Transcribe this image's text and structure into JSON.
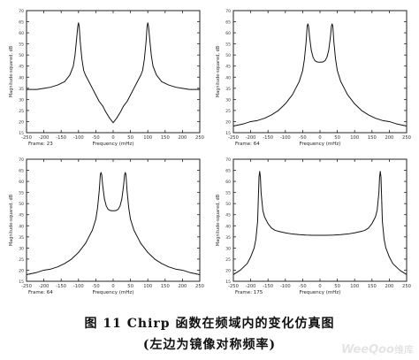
{
  "caption": {
    "line1": "图 11  Chirp 函数在频域内的变化仿真图",
    "line2": "(左边为镜像对称频率)"
  },
  "watermark": {
    "brand": "WeeQoo",
    "suffix": "维库"
  },
  "colors": {
    "curve": "#111111",
    "axis": "#222222",
    "bg": "#ffffff"
  },
  "chart_data": [
    {
      "type": "line",
      "frame": "Frame: 23",
      "xlabel": "Frequency (mHz)",
      "ylabel": "Magnitude-squared, dB",
      "xlim": [
        -250,
        250
      ],
      "ylim": [
        15,
        70
      ],
      "xticks": [
        -250,
        -200,
        -150,
        -100,
        -50,
        0,
        50,
        100,
        150,
        200,
        250
      ],
      "yticks": [
        15,
        20,
        25,
        30,
        35,
        40,
        45,
        50,
        55,
        60,
        65,
        70
      ],
      "series": [
        {
          "x": [
            -250,
            -220,
            -200,
            -180,
            -160,
            -140,
            -125,
            -115,
            -110,
            -105,
            -102,
            -100,
            -98,
            -95,
            -90,
            -85,
            -80,
            -70,
            -60,
            -50,
            -40,
            -30,
            -20,
            -10,
            0,
            10,
            20,
            30,
            40,
            50,
            60,
            70,
            80,
            85,
            90,
            95,
            98,
            100,
            102,
            105,
            110,
            115,
            125,
            140,
            160,
            180,
            200,
            220,
            250
          ],
          "y": [
            34.5,
            34.5,
            35,
            35.5,
            36.5,
            38,
            41,
            45,
            50,
            58,
            63,
            64.5,
            63,
            56,
            48,
            43,
            41,
            38,
            35,
            32,
            29,
            27,
            24,
            21.5,
            19.5,
            21.5,
            24,
            27,
            29,
            32,
            35,
            38,
            41,
            43,
            48,
            56,
            63,
            64.5,
            63,
            58,
            50,
            45,
            41,
            38,
            36.5,
            35.5,
            35,
            34.5,
            34.5
          ]
        }
      ]
    },
    {
      "type": "line",
      "frame": "Frame: 64",
      "xlabel": "Frequency (mHz)",
      "ylabel": "Magnitude-squared, dB",
      "xlim": [
        -250,
        250
      ],
      "ylim": [
        15,
        70
      ],
      "xticks": [
        -250,
        -200,
        -150,
        -100,
        -50,
        0,
        50,
        100,
        150,
        200,
        250
      ],
      "yticks": [
        15,
        20,
        25,
        30,
        35,
        40,
        45,
        50,
        55,
        60,
        65,
        70
      ],
      "series": [
        {
          "x": [
            -250,
            -220,
            -200,
            -180,
            -160,
            -140,
            -120,
            -100,
            -90,
            -80,
            -70,
            -60,
            -50,
            -45,
            -40,
            -37,
            -35,
            -33,
            -30,
            -25,
            -20,
            -15,
            -10,
            -5,
            0,
            5,
            10,
            15,
            20,
            25,
            30,
            33,
            35,
            37,
            40,
            45,
            50,
            60,
            70,
            80,
            90,
            100,
            120,
            140,
            160,
            180,
            200,
            220,
            250
          ],
          "y": [
            18,
            19,
            20,
            20.5,
            21.5,
            23,
            25,
            28,
            30,
            32,
            35,
            38,
            43,
            48,
            56,
            63,
            64,
            63,
            58,
            52,
            49,
            47.5,
            47,
            46.8,
            46.8,
            46.8,
            47,
            47.5,
            49,
            52,
            58,
            63,
            64,
            63,
            56,
            48,
            43,
            38,
            35,
            32,
            30,
            28,
            25,
            23,
            21.5,
            20.5,
            20,
            19,
            18
          ]
        }
      ]
    },
    {
      "type": "line",
      "frame": "Frame: 64",
      "xlabel": "Frequency (mHz)",
      "ylabel": "Magnitude-squared, dB",
      "xlim": [
        -250,
        250
      ],
      "ylim": [
        15,
        70
      ],
      "xticks": [
        -250,
        -200,
        -150,
        -100,
        -50,
        0,
        50,
        100,
        150,
        200,
        250
      ],
      "yticks": [
        15,
        20,
        25,
        30,
        35,
        40,
        45,
        50,
        55,
        60,
        65,
        70
      ],
      "series": [
        {
          "x": [
            -250,
            -220,
            -200,
            -180,
            -160,
            -140,
            -120,
            -100,
            -90,
            -80,
            -70,
            -60,
            -50,
            -45,
            -40,
            -37,
            -35,
            -33,
            -30,
            -25,
            -20,
            -15,
            -10,
            -5,
            0,
            5,
            10,
            15,
            20,
            25,
            30,
            33,
            35,
            37,
            40,
            45,
            50,
            60,
            70,
            80,
            90,
            100,
            120,
            140,
            160,
            180,
            200,
            220,
            250
          ],
          "y": [
            18,
            19,
            20,
            20.5,
            21.5,
            23,
            25,
            28,
            30,
            32,
            35,
            38,
            43,
            48,
            56,
            63,
            64,
            63,
            58,
            52,
            49,
            47.5,
            47,
            46.8,
            46.8,
            46.8,
            47,
            47.5,
            49,
            52,
            58,
            63,
            64,
            63,
            56,
            48,
            43,
            38,
            35,
            32,
            30,
            28,
            25,
            23,
            21.5,
            20.5,
            20,
            19,
            18
          ]
        }
      ]
    },
    {
      "type": "line",
      "frame": "Frame: 175",
      "xlabel": "Frequency (mHz)",
      "ylabel": "Magnitude-squared, dB",
      "xlim": [
        -250,
        250
      ],
      "ylim": [
        15,
        70
      ],
      "xticks": [
        -250,
        -200,
        -150,
        -100,
        -50,
        0,
        50,
        100,
        150,
        200,
        250
      ],
      "yticks": [
        15,
        20,
        25,
        30,
        35,
        40,
        45,
        50,
        55,
        60,
        65,
        70
      ],
      "series": [
        {
          "x": [
            -250,
            -240,
            -230,
            -220,
            -210,
            -200,
            -190,
            -185,
            -180,
            -178,
            -176,
            -174,
            -172,
            -170,
            -165,
            -160,
            -150,
            -140,
            -130,
            -120,
            -100,
            -80,
            -60,
            -40,
            -20,
            0,
            20,
            40,
            60,
            80,
            100,
            120,
            130,
            140,
            150,
            160,
            165,
            170,
            172,
            174,
            176,
            178,
            180,
            185,
            190,
            200,
            210,
            220,
            230,
            240,
            250
          ],
          "y": [
            18,
            19,
            20,
            21.5,
            23,
            26,
            30,
            34,
            42,
            52,
            62,
            64.5,
            62,
            55,
            47,
            44,
            41,
            39,
            38,
            37.5,
            36.8,
            36.3,
            36,
            35.8,
            35.7,
            35.7,
            35.7,
            35.8,
            36,
            36.3,
            36.8,
            37.5,
            38,
            39,
            41,
            44,
            47,
            55,
            62,
            64.5,
            62,
            52,
            42,
            34,
            30,
            26,
            23,
            21.5,
            20,
            19,
            18
          ]
        }
      ]
    }
  ]
}
